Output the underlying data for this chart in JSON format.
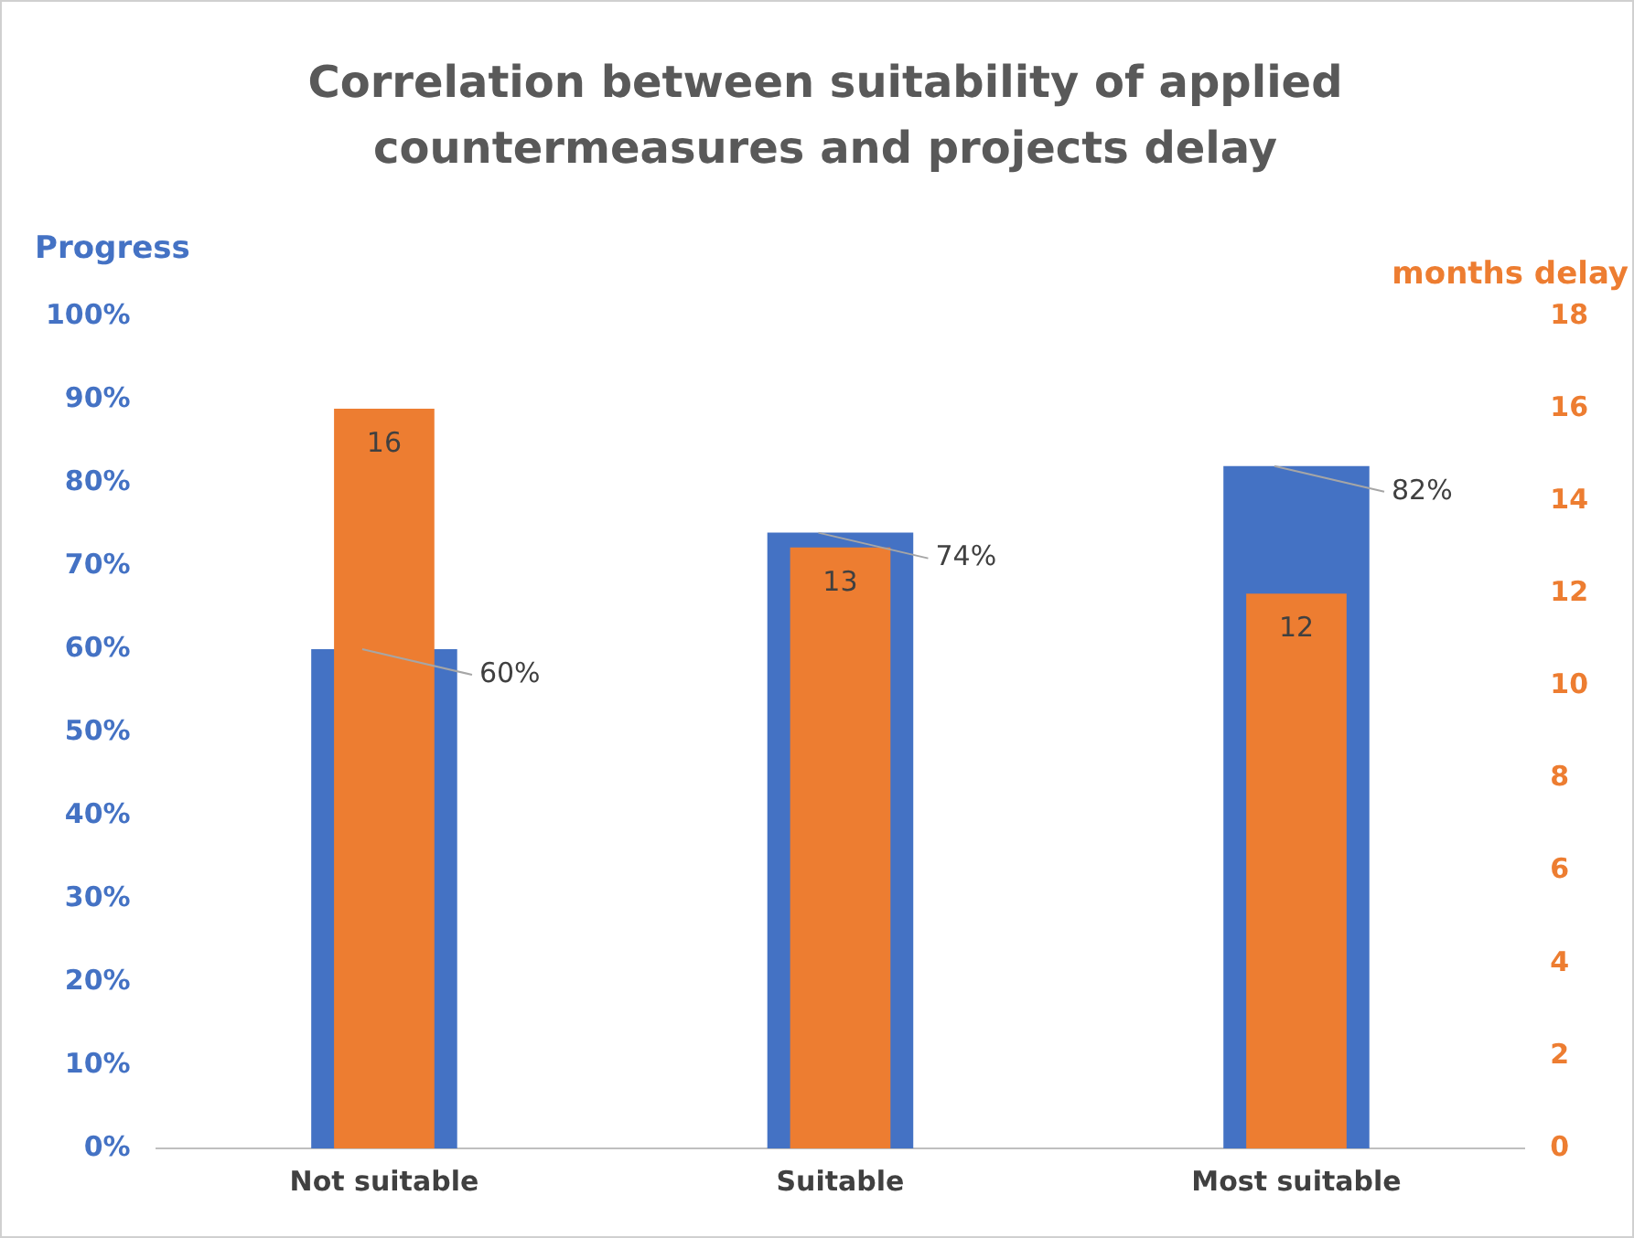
{
  "chart_data": {
    "type": "bar",
    "title": "Correlation between suitability of applied countermeasures and projects delay",
    "ylabel": "Progress",
    "y2label": "months delay",
    "categories": [
      "Not suitable",
      "Suitable",
      "Most suitable"
    ],
    "series": [
      {
        "color": "#4472c4",
        "values": [
          60,
          74,
          82
        ],
        "value_labels": [
          "60%",
          "74%",
          "82%"
        ]
      },
      {
        "color": "#ed7d31",
        "values": [
          16,
          13,
          12
        ],
        "axis": "y2",
        "value_labels": [
          "16",
          "13",
          "12"
        ]
      }
    ],
    "ylim": [
      0,
      100
    ],
    "yticks": [
      {
        "value": 0,
        "label": "0%"
      },
      {
        "value": 10,
        "label": "10%"
      },
      {
        "value": 20,
        "label": "20%"
      },
      {
        "value": 30,
        "label": "30%"
      },
      {
        "value": 40,
        "label": "40%"
      },
      {
        "value": 50,
        "label": "50%"
      },
      {
        "value": 60,
        "label": "60%"
      },
      {
        "value": 70,
        "label": "70%"
      },
      {
        "value": 80,
        "label": "80%"
      },
      {
        "value": 90,
        "label": "90%"
      },
      {
        "value": 100,
        "label": "100%"
      }
    ],
    "y2lim": [
      0,
      18
    ],
    "y2ticks": [
      0,
      2,
      4,
      6,
      8,
      10,
      12,
      14,
      16,
      18
    ],
    "grid": false,
    "legend": false
  }
}
